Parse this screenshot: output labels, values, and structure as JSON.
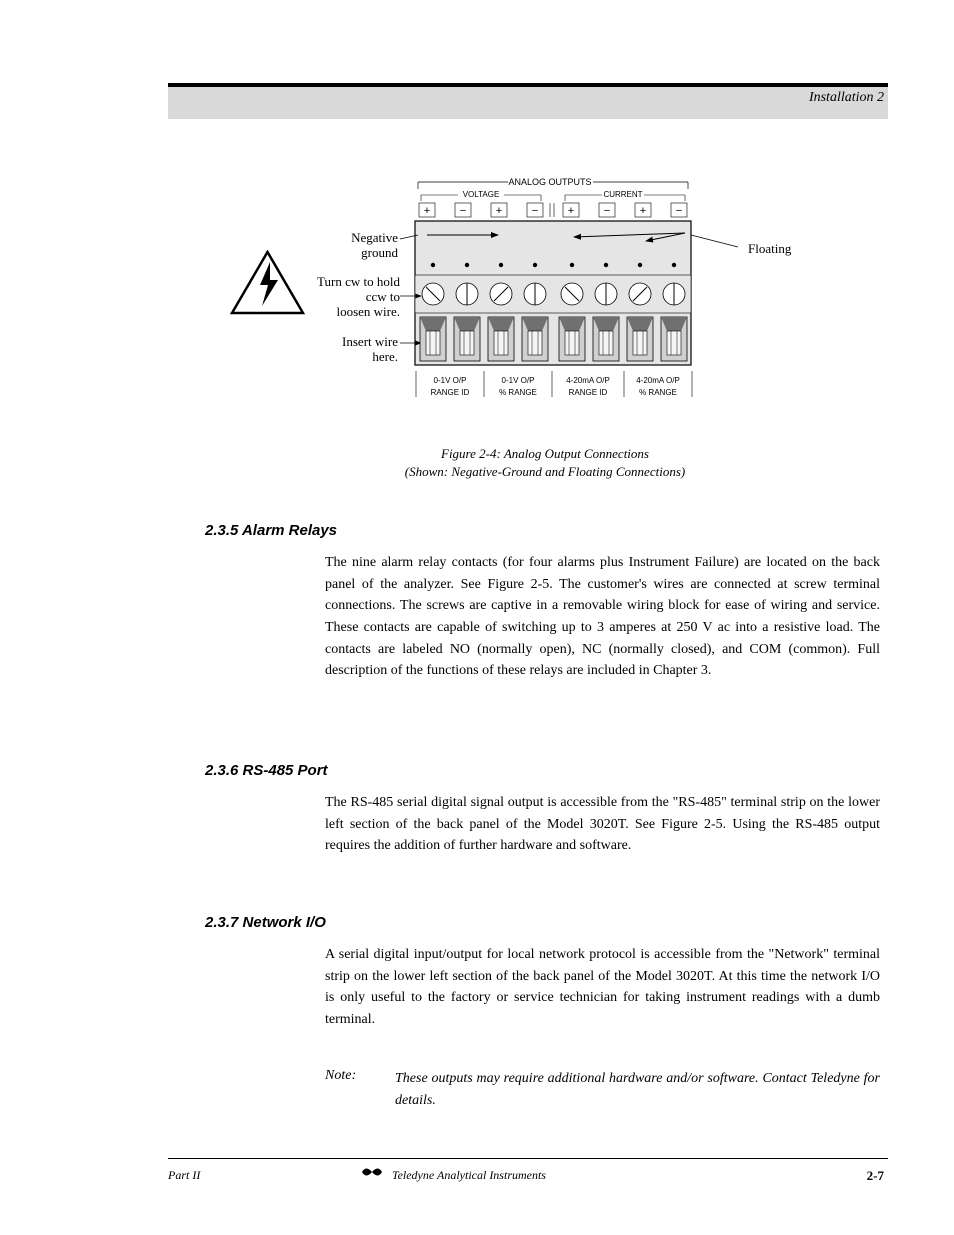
{
  "header": {
    "chapter": "Installation  2"
  },
  "diagram": {
    "title": "ANALOG OUTPUTS",
    "voltage_label": "VOLTAGE",
    "current_label": "CURRENT",
    "plus": "+",
    "minus": "−",
    "annotations": {
      "neg_ground": "Negative\nground",
      "cw_ccw": "Turn cw to hold\nccw to\nloosen wire.",
      "insert": "Insert wire\nhere.",
      "floating": "Floating"
    },
    "bottom_labels": [
      {
        "l1": "0-1V O/P",
        "l2": "RANGE ID"
      },
      {
        "l1": "0-1V O/P",
        "l2": "% RANGE"
      },
      {
        "l1": "4-20mA O/P",
        "l2": "RANGE ID"
      },
      {
        "l1": "4-20mA O/P",
        "l2": "% RANGE"
      }
    ],
    "caption": {
      "line1": "Figure 2-4: Analog Output Connections",
      "line2": "(Shown: Negative-Ground and Floating Connections)"
    },
    "colors": {
      "block_fill": "#e5e5e5",
      "block_stroke": "#000000",
      "port_fill_light": "#f0f0f0",
      "port_fill_dark": "#707070",
      "arrow": "#000000"
    }
  },
  "sections": {
    "s1": {
      "heading": "2.3.5  Alarm Relays",
      "para": "The nine alarm relay contacts (for four alarms plus Instrument Failure) are located on the back panel of the analyzer. See Figure 2-5. The customer's wires are connected at screw terminal connections. The screws are captive in a removable wiring block for ease of wiring and service. These contacts are capable of switching up to 3 amperes at 250 V ac into a resistive load. The contacts are labeled NO (normally open), NC (normally closed), and COM (common). Full description of the functions of these relays are included in Chapter 3."
    },
    "s2": {
      "heading": "2.3.6  RS-485 Port",
      "para": "The RS-485 serial digital signal output is accessible from the \"RS-485\" terminal strip on the lower left section of the back panel of the Model 3020T. See Figure 2-5. Using the RS-485 output requires the addition of further hardware and software."
    },
    "s3": {
      "heading": "2.3.7  Network I/O",
      "para": "A serial digital input/output for local network protocol is accessible from the \"Network\" terminal strip on the lower left section of the back panel of the Model 3020T. At this time the network I/O is only useful to the factory or service technician for taking instrument readings with a dumb terminal."
    },
    "note": {
      "label": "Note:",
      "text": "These outputs may require additional hardware and/or software. Contact Teledyne for details."
    }
  },
  "footer": {
    "left": "Part II",
    "center": "Teledyne Analytical Instruments",
    "right": "2-7"
  }
}
